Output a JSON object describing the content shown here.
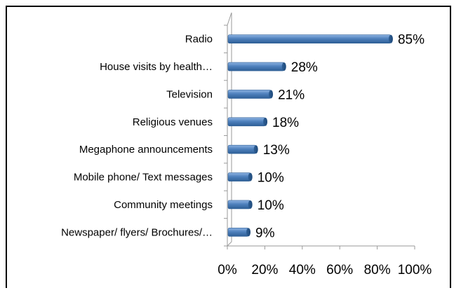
{
  "chart_data": {
    "type": "bar",
    "orientation": "horizontal",
    "categories": [
      "Radio",
      "House visits by health…",
      "Television",
      "Religious venues",
      "Megaphone announcements",
      "Mobile phone/ Text messages",
      "Community meetings",
      "Newspaper/ flyers/ Brochures/…"
    ],
    "values": [
      85,
      28,
      21,
      18,
      13,
      10,
      10,
      9
    ],
    "value_labels": [
      "85%",
      "28%",
      "21%",
      "18%",
      "13%",
      "10%",
      "10%",
      "9%"
    ],
    "xlim": [
      0,
      100
    ],
    "xticks": [
      "0%",
      "20%",
      "40%",
      "60%",
      "80%",
      "100%"
    ],
    "title": "",
    "xlabel": "",
    "ylabel": "",
    "grid": false,
    "legend": "none",
    "bar_color": "#4F81BD",
    "bar_dark_color": "#2E5F96"
  }
}
